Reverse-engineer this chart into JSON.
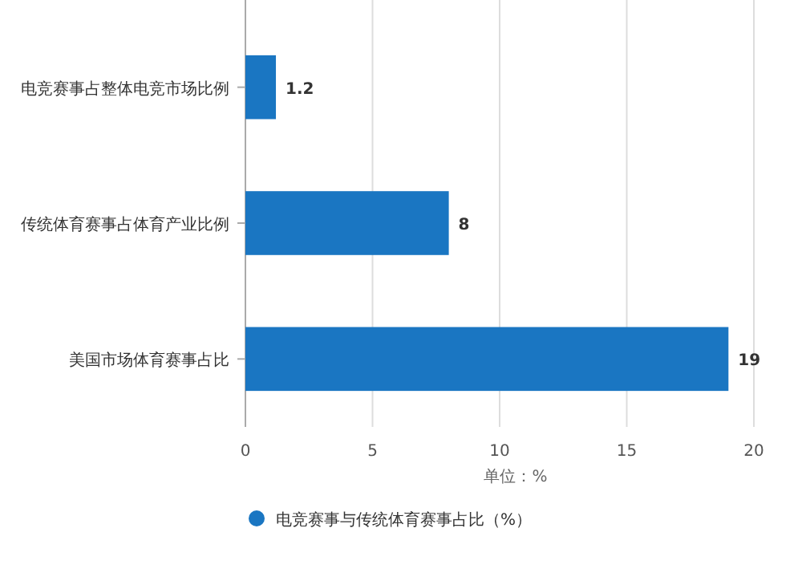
{
  "chart_data": {
    "type": "bar",
    "orientation": "horizontal",
    "categories": [
      "电竞赛事占整体电竞市场比例",
      "传统体育赛事占体育产业比例",
      "美国市场体育赛事占比"
    ],
    "series": [
      {
        "name": "电竞赛事与传统体育赛事占比（%）",
        "color": "#1a76c2",
        "values": [
          1.2,
          8,
          19
        ]
      }
    ],
    "xlim": [
      0,
      20
    ],
    "xticks": [
      0,
      5,
      10,
      15,
      20
    ],
    "xlabel": "单位：%",
    "grid": "x",
    "legend": "bottom",
    "data_labels": true
  }
}
